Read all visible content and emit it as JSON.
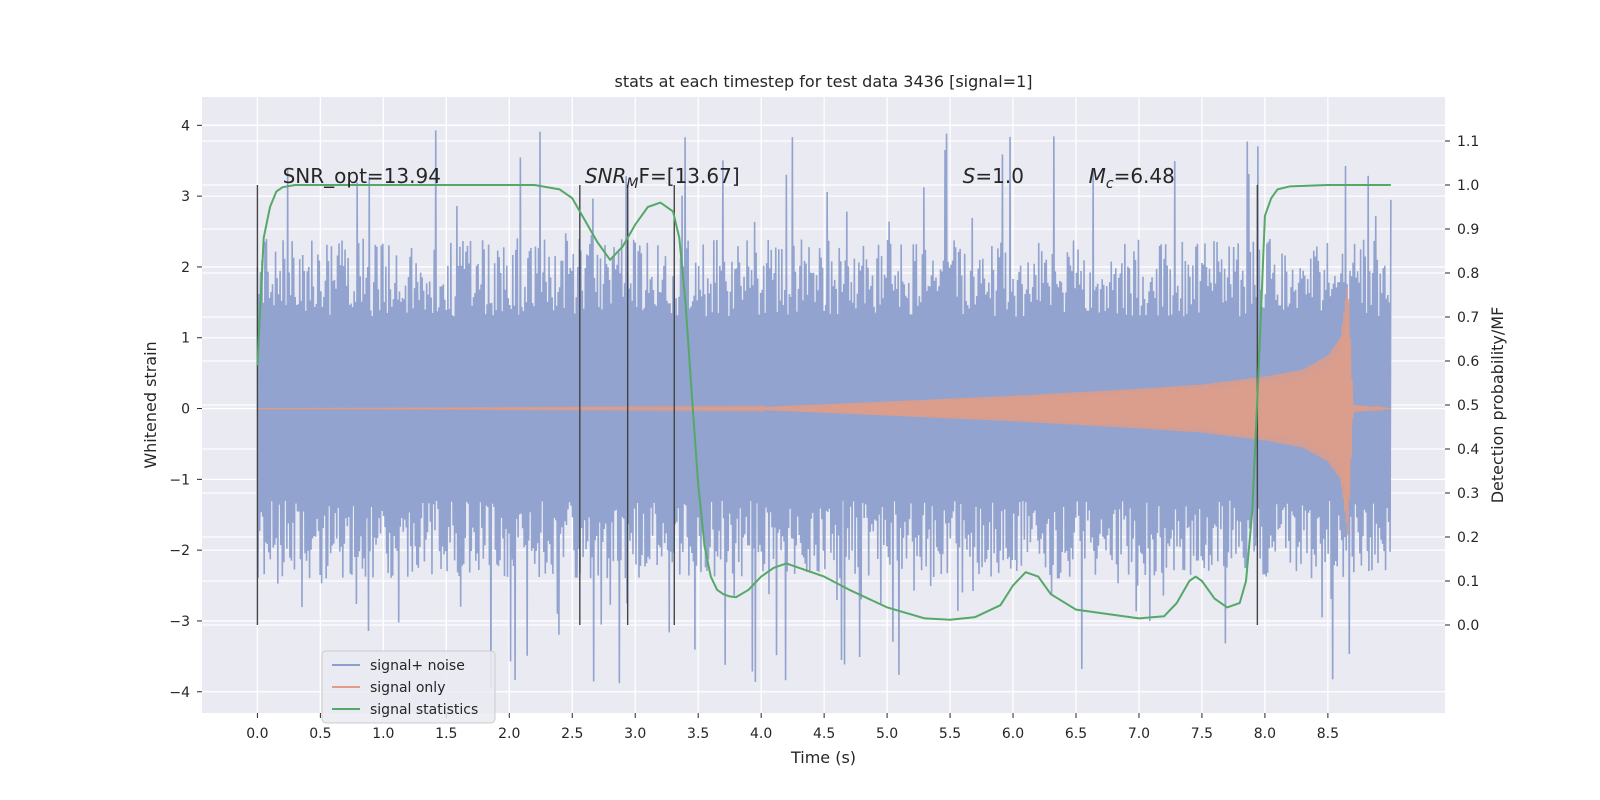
{
  "chart_data": {
    "type": "line",
    "title": "stats at each timestep for test data 3436 [signal=1]",
    "xlabel": "Time (s)",
    "ylabel_left": "Whitened strain",
    "ylabel_right": "Detection probability/MF",
    "xlim": [
      -0.44,
      9.43
    ],
    "ylim_left": [
      -4.3,
      4.4
    ],
    "ylim_right": [
      -0.2,
      1.2
    ],
    "x_ticks": [
      "0.0",
      "0.5",
      "1.0",
      "1.5",
      "2.0",
      "2.5",
      "3.0",
      "3.5",
      "4.0",
      "4.5",
      "5.0",
      "5.5",
      "6.0",
      "6.5",
      "7.0",
      "7.5",
      "8.0",
      "8.5"
    ],
    "y_left_ticks": [
      "4",
      "3",
      "2",
      "1",
      "0",
      "−1",
      "−2",
      "−3",
      "−4"
    ],
    "y_right_ticks": [
      "1.1",
      "1.0",
      "0.9",
      "0.8",
      "0.7",
      "0.6",
      "0.5",
      "0.4",
      "0.3",
      "0.2",
      "0.1",
      "0.0"
    ],
    "grid": true,
    "legend_placement": "lower-left",
    "annotations": [
      {
        "text": "SNR_opt=13.94",
        "x": 0.2
      },
      {
        "text": "SNR",
        "sub": "M",
        "tail": "F=[13.67]",
        "x": 2.6
      },
      {
        "text": "S",
        "tail": "=1.0",
        "x": 5.6
      },
      {
        "text": "M",
        "sub": "c",
        "tail": "=6.48",
        "x": 6.6
      }
    ],
    "vertical_markers": [
      0.0,
      2.56,
      2.94,
      3.31,
      7.94
    ],
    "series": [
      {
        "name": "signal+ noise",
        "color": "#8c9fcb",
        "x_range": [
          0.0,
          9.0
        ],
        "envelope": {
          "inner_abs": 1.3,
          "outer_abs": 2.4,
          "max_abs": 4.0
        }
      },
      {
        "name": "signal only",
        "color": "#e39c85",
        "x_range": [
          0.0,
          9.0
        ],
        "samples_x": [
          0,
          4,
          4.5,
          5,
          5.5,
          6,
          6.5,
          7,
          7.5,
          8,
          8.3,
          8.5,
          8.6,
          8.66,
          8.7,
          9.0
        ],
        "samples_amp": [
          0.0,
          0.02,
          0.06,
          0.1,
          0.14,
          0.18,
          0.23,
          0.28,
          0.34,
          0.45,
          0.55,
          0.75,
          1.0,
          1.8,
          0.05,
          0.0
        ]
      },
      {
        "name": "signal statistics",
        "color": "#55a868",
        "axis": "right",
        "x": [
          0,
          0.05,
          0.1,
          0.15,
          0.2,
          0.3,
          0.5,
          1.0,
          2.0,
          2.2,
          2.4,
          2.5,
          2.6,
          2.7,
          2.8,
          2.9,
          3.0,
          3.1,
          3.2,
          3.3,
          3.35,
          3.4,
          3.45,
          3.5,
          3.55,
          3.6,
          3.65,
          3.7,
          3.75,
          3.8,
          3.9,
          4.0,
          4.1,
          4.2,
          4.3,
          4.5,
          4.7,
          5.0,
          5.3,
          5.5,
          5.7,
          5.9,
          6.0,
          6.1,
          6.2,
          6.3,
          6.5,
          7.0,
          7.2,
          7.3,
          7.4,
          7.45,
          7.5,
          7.6,
          7.7,
          7.8,
          7.85,
          7.9,
          7.95,
          8.0,
          8.05,
          8.1,
          8.2,
          8.5,
          9.0
        ],
        "y": [
          0.59,
          0.88,
          0.95,
          0.985,
          0.995,
          1.0,
          1.0,
          1.0,
          1.0,
          1.0,
          0.99,
          0.97,
          0.92,
          0.87,
          0.83,
          0.86,
          0.91,
          0.95,
          0.96,
          0.94,
          0.88,
          0.73,
          0.52,
          0.32,
          0.18,
          0.11,
          0.08,
          0.07,
          0.065,
          0.063,
          0.08,
          0.11,
          0.13,
          0.14,
          0.13,
          0.11,
          0.08,
          0.04,
          0.015,
          0.012,
          0.018,
          0.045,
          0.09,
          0.12,
          0.11,
          0.07,
          0.035,
          0.015,
          0.02,
          0.05,
          0.1,
          0.11,
          0.1,
          0.06,
          0.04,
          0.05,
          0.1,
          0.26,
          0.58,
          0.93,
          0.97,
          0.99,
          0.997,
          1.0,
          1.0
        ]
      }
    ]
  }
}
